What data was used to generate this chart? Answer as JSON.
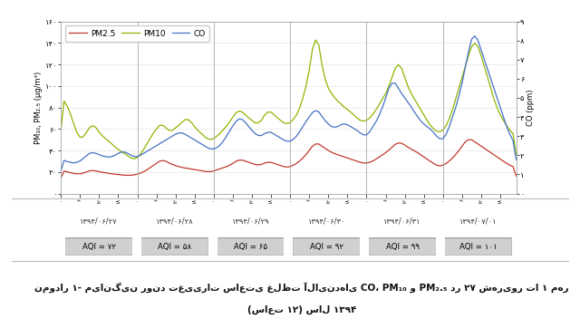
{
  "title_line1": "نمودار ۱- میانگین روند تغییرات ساعتی غلظت آلایندهای CO، PM₁₀ و PM₂.₅ در ۲۷ شهریور تا ۱ مهر",
  "title_line2": "(ساعت ۱۲) سال ۱۳۹۴",
  "ylabel_left": "PM₁₀, PM₂.₅ (μg/m³)",
  "ylabel_right": "CO (ppm)",
  "ylim_left": [
    0,
    160
  ],
  "ylim_right": [
    0,
    9
  ],
  "yticks_left": [
    0,
    20,
    40,
    60,
    80,
    100,
    120,
    140,
    160
  ],
  "ytick_labels_left": [
    "۰",
    "۲۰",
    "۴۰",
    "۶۰",
    "۸۰",
    "۱۰۰",
    "۱۲۰",
    "۱۴۰",
    "۱۶۰"
  ],
  "yticks_right": [
    0,
    1,
    2,
    3,
    4,
    5,
    6,
    7,
    8,
    9
  ],
  "ytick_labels_right": [
    "۰",
    "۱",
    "۲",
    "۳",
    "۴",
    "۵",
    "۶",
    "۷",
    "۸",
    "۹"
  ],
  "color_pm25": "#c0392b",
  "color_pm10": "#8db600",
  "color_co": "#4472c4",
  "legend_labels": [
    "PM2.5",
    "PM10",
    "CO"
  ],
  "n_points": 144,
  "days": 6,
  "day_labels": [
    "۱۳۹۴/۰۶/۲۷",
    "۱۳۹۴/۰۶/۲۸",
    "۱۳۹۴/۰۶/۲۹",
    "۱۳۹۴/۰۶/۳۰",
    "۱۳۹۴/۰۶/۳۱",
    "۱۳۹۴/۰۷/۰۱"
  ],
  "aqi_values": [
    "AQI = ۷۲",
    "AQI = ۵۸",
    "AQI = ۶۵",
    "AQI = ۹۲",
    "AQI = ۹۹",
    "AQI = ۱۰۱"
  ],
  "plot_bg": "#ffffff",
  "fig_bg": "#ffffff",
  "grid_color": "#e0e0e0",
  "hour_tick_interval": 6,
  "pm10_data": [
    90,
    86,
    82,
    75,
    65,
    55,
    50,
    52,
    56,
    62,
    66,
    61,
    57,
    53,
    51,
    49,
    46,
    43,
    41,
    39,
    37,
    35,
    33,
    31,
    33,
    36,
    41,
    46,
    51,
    56,
    61,
    63,
    66,
    61,
    56,
    59,
    61,
    63,
    66,
    69,
    71,
    66,
    61,
    59,
    56,
    53,
    51,
    49,
    51,
    53,
    56,
    59,
    63,
    66,
    71,
    76,
    78,
    76,
    73,
    70,
    68,
    66,
    63,
    68,
    73,
    78,
    76,
    73,
    70,
    68,
    66,
    63,
    66,
    68,
    73,
    78,
    88,
    100,
    112,
    132,
    158,
    138,
    118,
    103,
    98,
    93,
    88,
    86,
    83,
    80,
    78,
    76,
    73,
    70,
    68,
    66,
    68,
    70,
    73,
    78,
    83,
    88,
    93,
    98,
    108,
    118,
    123,
    118,
    108,
    98,
    93,
    88,
    83,
    78,
    73,
    68,
    63,
    60,
    58,
    56,
    58,
    63,
    68,
    78,
    88,
    98,
    108,
    118,
    128,
    138,
    143,
    138,
    128,
    118,
    108,
    98,
    88,
    78,
    73,
    68,
    63,
    58,
    56,
    53
  ],
  "pm25_data": [
    22,
    21,
    20,
    19,
    19,
    18,
    18,
    19,
    20,
    21,
    22,
    21,
    20,
    20,
    19,
    19,
    18,
    18,
    18,
    17,
    17,
    17,
    17,
    17,
    18,
    19,
    20,
    22,
    24,
    26,
    28,
    30,
    32,
    30,
    28,
    27,
    26,
    25,
    24,
    24,
    23,
    23,
    22,
    22,
    21,
    21,
    20,
    20,
    21,
    22,
    23,
    24,
    25,
    26,
    28,
    30,
    32,
    31,
    30,
    29,
    28,
    27,
    26,
    27,
    28,
    30,
    29,
    28,
    27,
    26,
    25,
    24,
    25,
    26,
    28,
    30,
    33,
    36,
    40,
    44,
    48,
    46,
    44,
    42,
    40,
    38,
    37,
    36,
    35,
    34,
    33,
    32,
    31,
    30,
    29,
    28,
    28,
    29,
    30,
    32,
    34,
    36,
    38,
    40,
    43,
    46,
    48,
    47,
    45,
    43,
    41,
    40,
    38,
    36,
    34,
    32,
    30,
    28,
    26,
    25,
    26,
    28,
    30,
    33,
    36,
    40,
    44,
    48,
    52,
    50,
    48,
    46,
    44,
    42,
    40,
    38,
    36,
    34,
    32,
    30,
    28,
    26,
    25,
    24
  ],
  "co_data": [
    1.8,
    1.7,
    1.7,
    1.6,
    1.6,
    1.6,
    1.7,
    1.8,
    2.0,
    2.1,
    2.2,
    2.1,
    2.0,
    2.0,
    1.9,
    1.9,
    1.9,
    2.0,
    2.1,
    2.2,
    2.2,
    2.1,
    2.0,
    1.9,
    1.9,
    2.0,
    2.1,
    2.2,
    2.3,
    2.4,
    2.5,
    2.6,
    2.7,
    2.8,
    2.9,
    3.0,
    3.1,
    3.2,
    3.2,
    3.1,
    3.0,
    2.9,
    2.8,
    2.7,
    2.6,
    2.5,
    2.4,
    2.3,
    2.3,
    2.4,
    2.5,
    2.7,
    3.0,
    3.3,
    3.5,
    3.8,
    4.0,
    3.9,
    3.7,
    3.5,
    3.3,
    3.1,
    3.0,
    3.0,
    3.1,
    3.3,
    3.2,
    3.1,
    3.0,
    2.9,
    2.8,
    2.7,
    2.7,
    2.8,
    3.0,
    3.2,
    3.5,
    3.8,
    4.0,
    4.2,
    4.5,
    4.3,
    4.0,
    3.8,
    3.6,
    3.5,
    3.4,
    3.5,
    3.6,
    3.7,
    3.6,
    3.5,
    3.4,
    3.3,
    3.2,
    3.0,
    3.0,
    3.2,
    3.5,
    3.8,
    4.0,
    4.5,
    5.0,
    5.5,
    6.0,
    5.8,
    5.5,
    5.2,
    5.0,
    4.8,
    4.5,
    4.3,
    4.0,
    3.8,
    3.6,
    3.5,
    3.4,
    3.2,
    3.0,
    2.8,
    2.8,
    3.0,
    3.5,
    4.0,
    4.5,
    5.0,
    5.8,
    6.5,
    7.5,
    8.2,
    8.5,
    8.0,
    7.5,
    7.0,
    6.5,
    6.0,
    5.5,
    5.0,
    4.5,
    4.0,
    3.5,
    3.0,
    2.8,
    2.5
  ]
}
